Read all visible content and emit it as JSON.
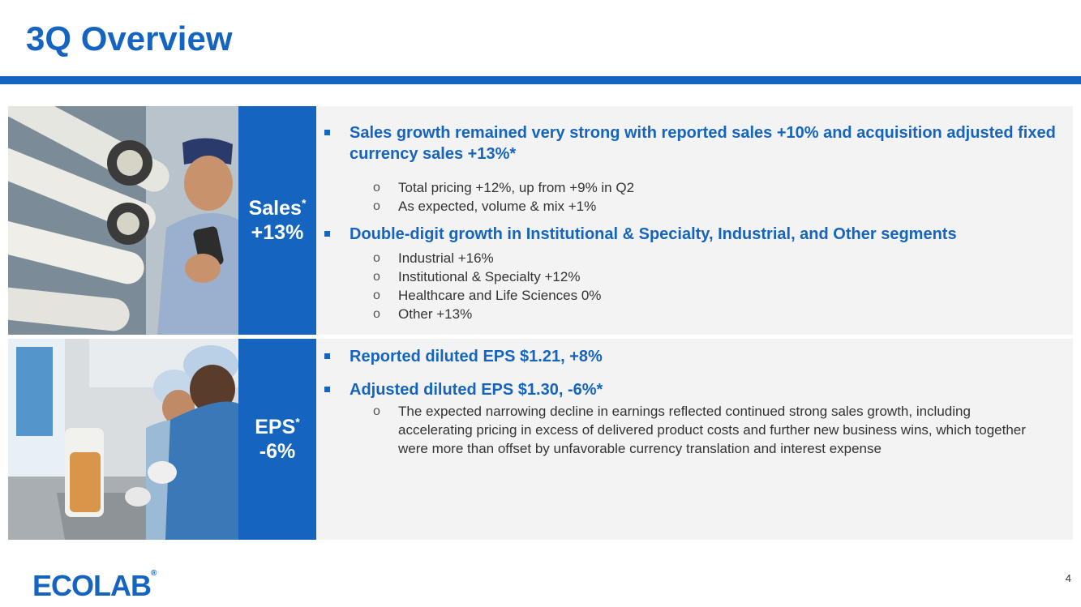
{
  "slide": {
    "title": "3Q Overview",
    "page_number": "4"
  },
  "logo": {
    "text": "ECOLAB",
    "registered": "®"
  },
  "sales": {
    "metric_label": "Sales",
    "metric_asterisk": "*",
    "metric_value": "+13%",
    "bullets": [
      {
        "text": "Sales growth remained very strong with reported sales +10% and acquisition adjusted fixed currency sales +13%*",
        "subs": [
          "Total pricing +12%, up from +9% in Q2",
          "As expected, volume & mix +1%"
        ]
      },
      {
        "text": "Double-digit growth in Institutional & Specialty, Industrial, and Other segments",
        "subs": [
          "Industrial +16%",
          "Institutional & Specialty +12%",
          "Healthcare and Life Sciences 0%",
          "Other +13%"
        ]
      }
    ]
  },
  "eps": {
    "metric_label": "EPS",
    "metric_asterisk": "*",
    "metric_value": "-6%",
    "bullets": [
      {
        "text": "Reported diluted EPS $1.21, +8%",
        "subs": []
      },
      {
        "text": "Adjusted diluted EPS $1.30, -6%*",
        "subs": [
          "The expected narrowing decline in earnings reflected continued strong sales growth, including accelerating pricing in excess of delivered product costs and further new business wins, which together were more than offset by unfavorable currency translation and interest expense"
        ]
      }
    ]
  },
  "colors": {
    "brand_blue": "#1565c0",
    "panel_bg": "#f3f3f3"
  }
}
